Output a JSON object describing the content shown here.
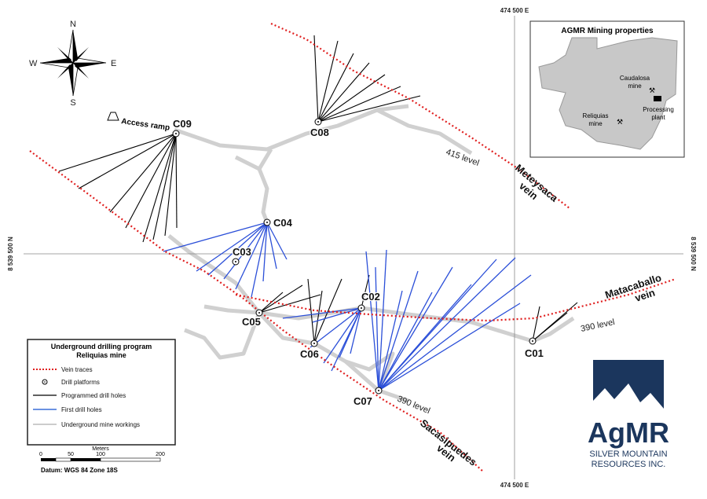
{
  "compass": {
    "north": "N",
    "east": "E",
    "south": "S",
    "west": "W"
  },
  "grid": {
    "easting_top": "474 500 E",
    "easting_bottom": "474 500 E",
    "northing_left": "8 539 500 N",
    "northing_right": "8 539 500 N"
  },
  "platforms": [
    {
      "label": "C09"
    },
    {
      "label": "C08"
    },
    {
      "label": "C04"
    },
    {
      "label": "C03"
    },
    {
      "label": "C05"
    },
    {
      "label": "C06"
    },
    {
      "label": "C02"
    },
    {
      "label": "C07"
    },
    {
      "label": "C01"
    }
  ],
  "features": {
    "access_ramp": "Access ramp",
    "level_415": "415 level",
    "level_390_east": "390 level",
    "level_390_south": "390 level"
  },
  "veins": {
    "meteysaca": [
      "Meteysaca",
      "vein"
    ],
    "matacaballo": [
      "Matacaballo",
      "vein"
    ],
    "sacasipuedes": [
      "Sacasipuedes",
      "vein"
    ]
  },
  "inset": {
    "title": "AGMR Mining properties",
    "caudalosa": [
      "Caudalosa",
      "mine"
    ],
    "reliquias": [
      "Reliquias",
      "mine"
    ],
    "plant": [
      "Processing",
      "plant"
    ]
  },
  "legend": {
    "title": [
      "Underground drilling program",
      "Reliquias mine"
    ],
    "items": [
      "Vein traces",
      "Drill platforms",
      "Programmed drill holes",
      "First drill holes",
      "Underground mine workings"
    ]
  },
  "scale": {
    "unit": "Meters",
    "ticks": [
      "0",
      "50",
      "100",
      "200"
    ],
    "datum": "Datum: WGS 84 Zone 18S"
  },
  "logo": {
    "name": "AgMR",
    "line1": "SILVER MOUNTAIN",
    "line2": "RESOURCES INC."
  }
}
